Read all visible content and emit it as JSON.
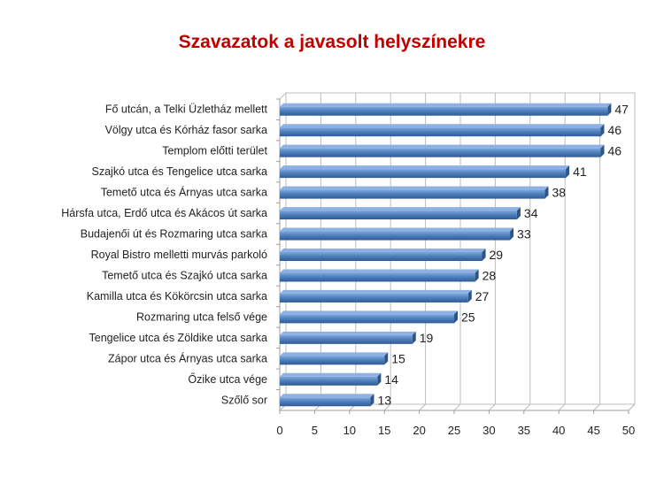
{
  "chart_data": {
    "type": "bar",
    "orientation": "horizontal",
    "title": "Szavazatok a javasolt helyszínekre",
    "categories": [
      "Fő utcán, a Telki Üzletház mellett",
      "Völgy utca és Kórház fasor sarka",
      "Templom előtti terület",
      "Szajkó utca és Tengelice utca sarka",
      "Temető utca és Árnyas utca sarka",
      "Hársfa utca, Erdő utca és Akácos út sarka",
      "Budajenői út és Rozmaring utca sarka",
      "Royal Bistro melletti murvás parkoló",
      "Temető utca és Szajkó utca sarka",
      "Kamilla utca és Kökörcsin utca sarka",
      "Rozmaring utca felső vége",
      "Tengelice utca és Zöldike utca sarka",
      "Zápor utca és Árnyas utca sarka",
      "Őzike utca vége",
      "Szőlő sor"
    ],
    "values": [
      47,
      46,
      46,
      41,
      38,
      34,
      33,
      29,
      28,
      27,
      25,
      19,
      15,
      14,
      13
    ],
    "xlim": [
      0,
      50
    ],
    "xticks": [
      "0",
      "5",
      "10",
      "15",
      "20",
      "25",
      "30",
      "35",
      "40",
      "45",
      "50"
    ],
    "grid": true,
    "legend": "none",
    "bar_color": "#4a7ebb",
    "title_color": "#c00000"
  }
}
